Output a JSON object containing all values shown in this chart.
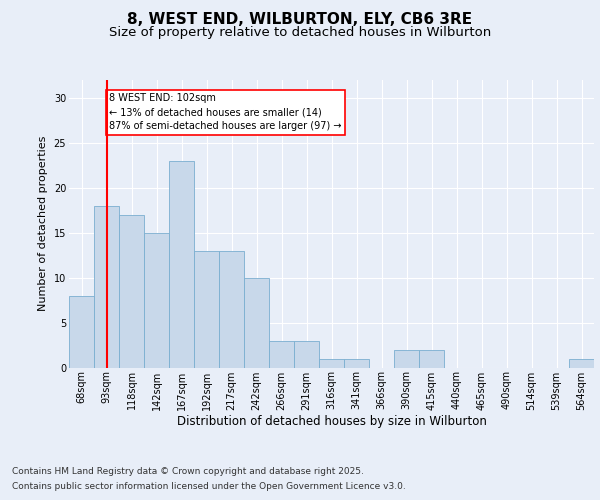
{
  "title_line1": "8, WEST END, WILBURTON, ELY, CB6 3RE",
  "title_line2": "Size of property relative to detached houses in Wilburton",
  "xlabel": "Distribution of detached houses by size in Wilburton",
  "ylabel": "Number of detached properties",
  "categories": [
    "68sqm",
    "93sqm",
    "118sqm",
    "142sqm",
    "167sqm",
    "192sqm",
    "217sqm",
    "242sqm",
    "266sqm",
    "291sqm",
    "316sqm",
    "341sqm",
    "366sqm",
    "390sqm",
    "415sqm",
    "440sqm",
    "465sqm",
    "490sqm",
    "514sqm",
    "539sqm",
    "564sqm"
  ],
  "values": [
    8,
    18,
    17,
    15,
    23,
    13,
    13,
    10,
    3,
    3,
    1,
    1,
    0,
    2,
    2,
    0,
    0,
    0,
    0,
    0,
    1
  ],
  "bar_color": "#c8d8ea",
  "bar_edge_color": "#7aaed0",
  "vline_x": 1.0,
  "vline_color": "red",
  "annotation_text": "8 WEST END: 102sqm\n← 13% of detached houses are smaller (14)\n87% of semi-detached houses are larger (97) →",
  "annotation_box_color": "white",
  "annotation_box_edge_color": "red",
  "ylim": [
    0,
    32
  ],
  "yticks": [
    0,
    5,
    10,
    15,
    20,
    25,
    30
  ],
  "background_color": "#e8eef8",
  "plot_bg_color": "#e8eef8",
  "footer_line1": "Contains HM Land Registry data © Crown copyright and database right 2025.",
  "footer_line2": "Contains public sector information licensed under the Open Government Licence v3.0.",
  "title_fontsize": 11,
  "subtitle_fontsize": 9.5,
  "tick_fontsize": 7,
  "xlabel_fontsize": 8.5,
  "ylabel_fontsize": 8,
  "footer_fontsize": 6.5
}
